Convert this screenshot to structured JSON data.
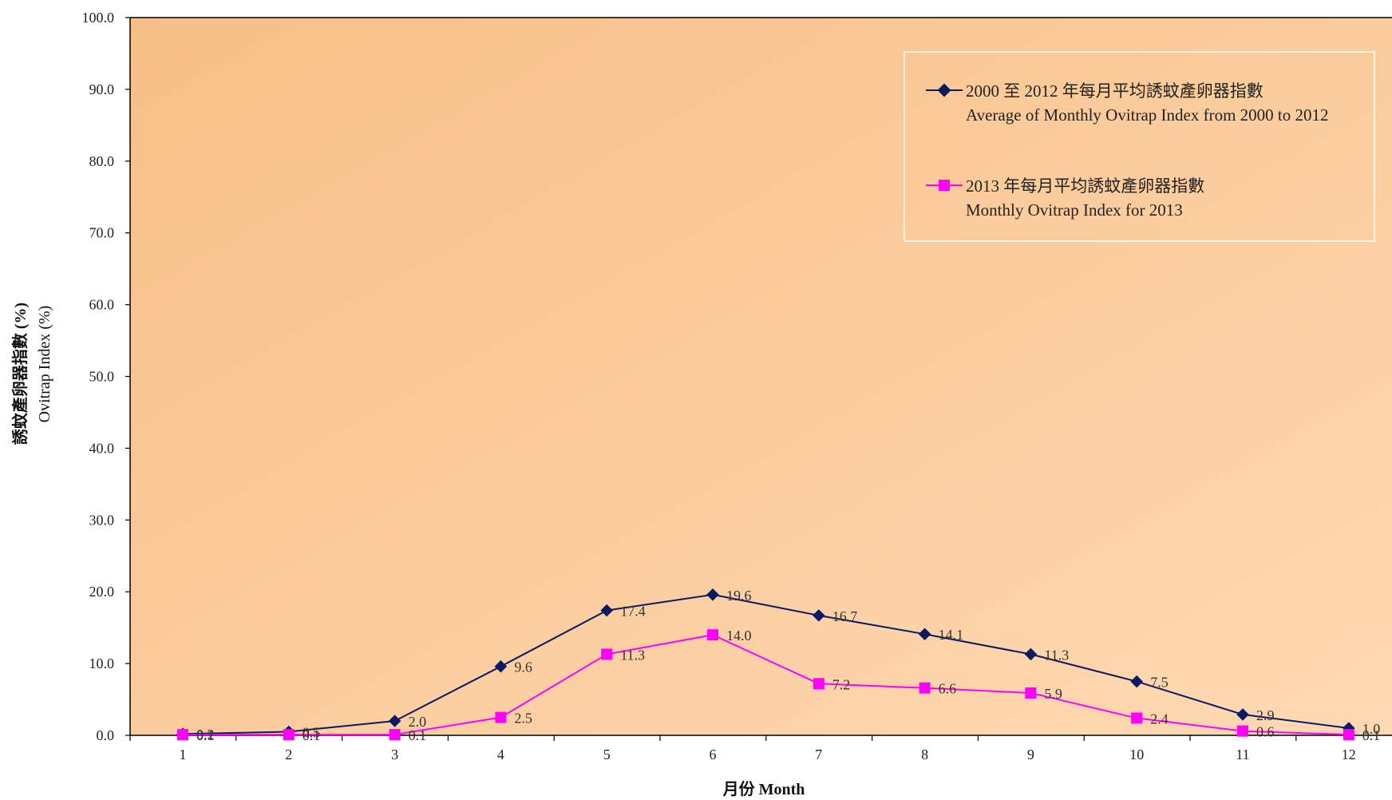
{
  "chart_data": {
    "type": "line",
    "categories": [
      "1",
      "2",
      "3",
      "4",
      "5",
      "6",
      "7",
      "8",
      "9",
      "10",
      "11",
      "12"
    ],
    "ylim": [
      0,
      100
    ],
    "yticks": [
      "0.0",
      "10.0",
      "20.0",
      "30.0",
      "40.0",
      "50.0",
      "60.0",
      "70.0",
      "80.0",
      "90.0",
      "100.0"
    ],
    "xlabel": "月份 Month",
    "ylabel_zh": "誘蚊產卵器指數 (%)",
    "ylabel_en": "Ovitrap Index (%)",
    "legend_position": "top-right",
    "grid": false,
    "background_color": "#fbc996",
    "series": [
      {
        "name_zh": "2000 至 2012 年每月平均誘蚊產卵器指數",
        "name_en": "Average of Monthly Ovitrap Index from 2000 to 2012",
        "color": "#0c1a66",
        "marker": "diamond",
        "values": [
          0.2,
          0.5,
          2.0,
          9.6,
          17.4,
          19.6,
          16.7,
          14.1,
          11.3,
          7.5,
          2.9,
          1.0
        ],
        "labels": [
          "0.2",
          "0.5",
          "2.0",
          "9.6",
          "17.4",
          "19.6",
          "16.7",
          "14.1",
          "11.3",
          "7.5",
          "2.9",
          "1.0"
        ]
      },
      {
        "name_zh": "2013 年每月平均誘蚊產卵器指數",
        "name_en": "Monthly Ovitrap Index for 2013",
        "color": "#ff00ff",
        "marker": "square",
        "values": [
          0.1,
          0.1,
          0.1,
          2.5,
          11.3,
          14.0,
          7.2,
          6.6,
          5.9,
          2.4,
          0.6,
          0.1
        ],
        "labels": [
          "0.1",
          "0.1",
          "0.1",
          "2.5",
          "11.3",
          "14.0",
          "7.2",
          "6.6",
          "5.9",
          "2.4",
          "0.6",
          "0.1"
        ]
      }
    ]
  }
}
